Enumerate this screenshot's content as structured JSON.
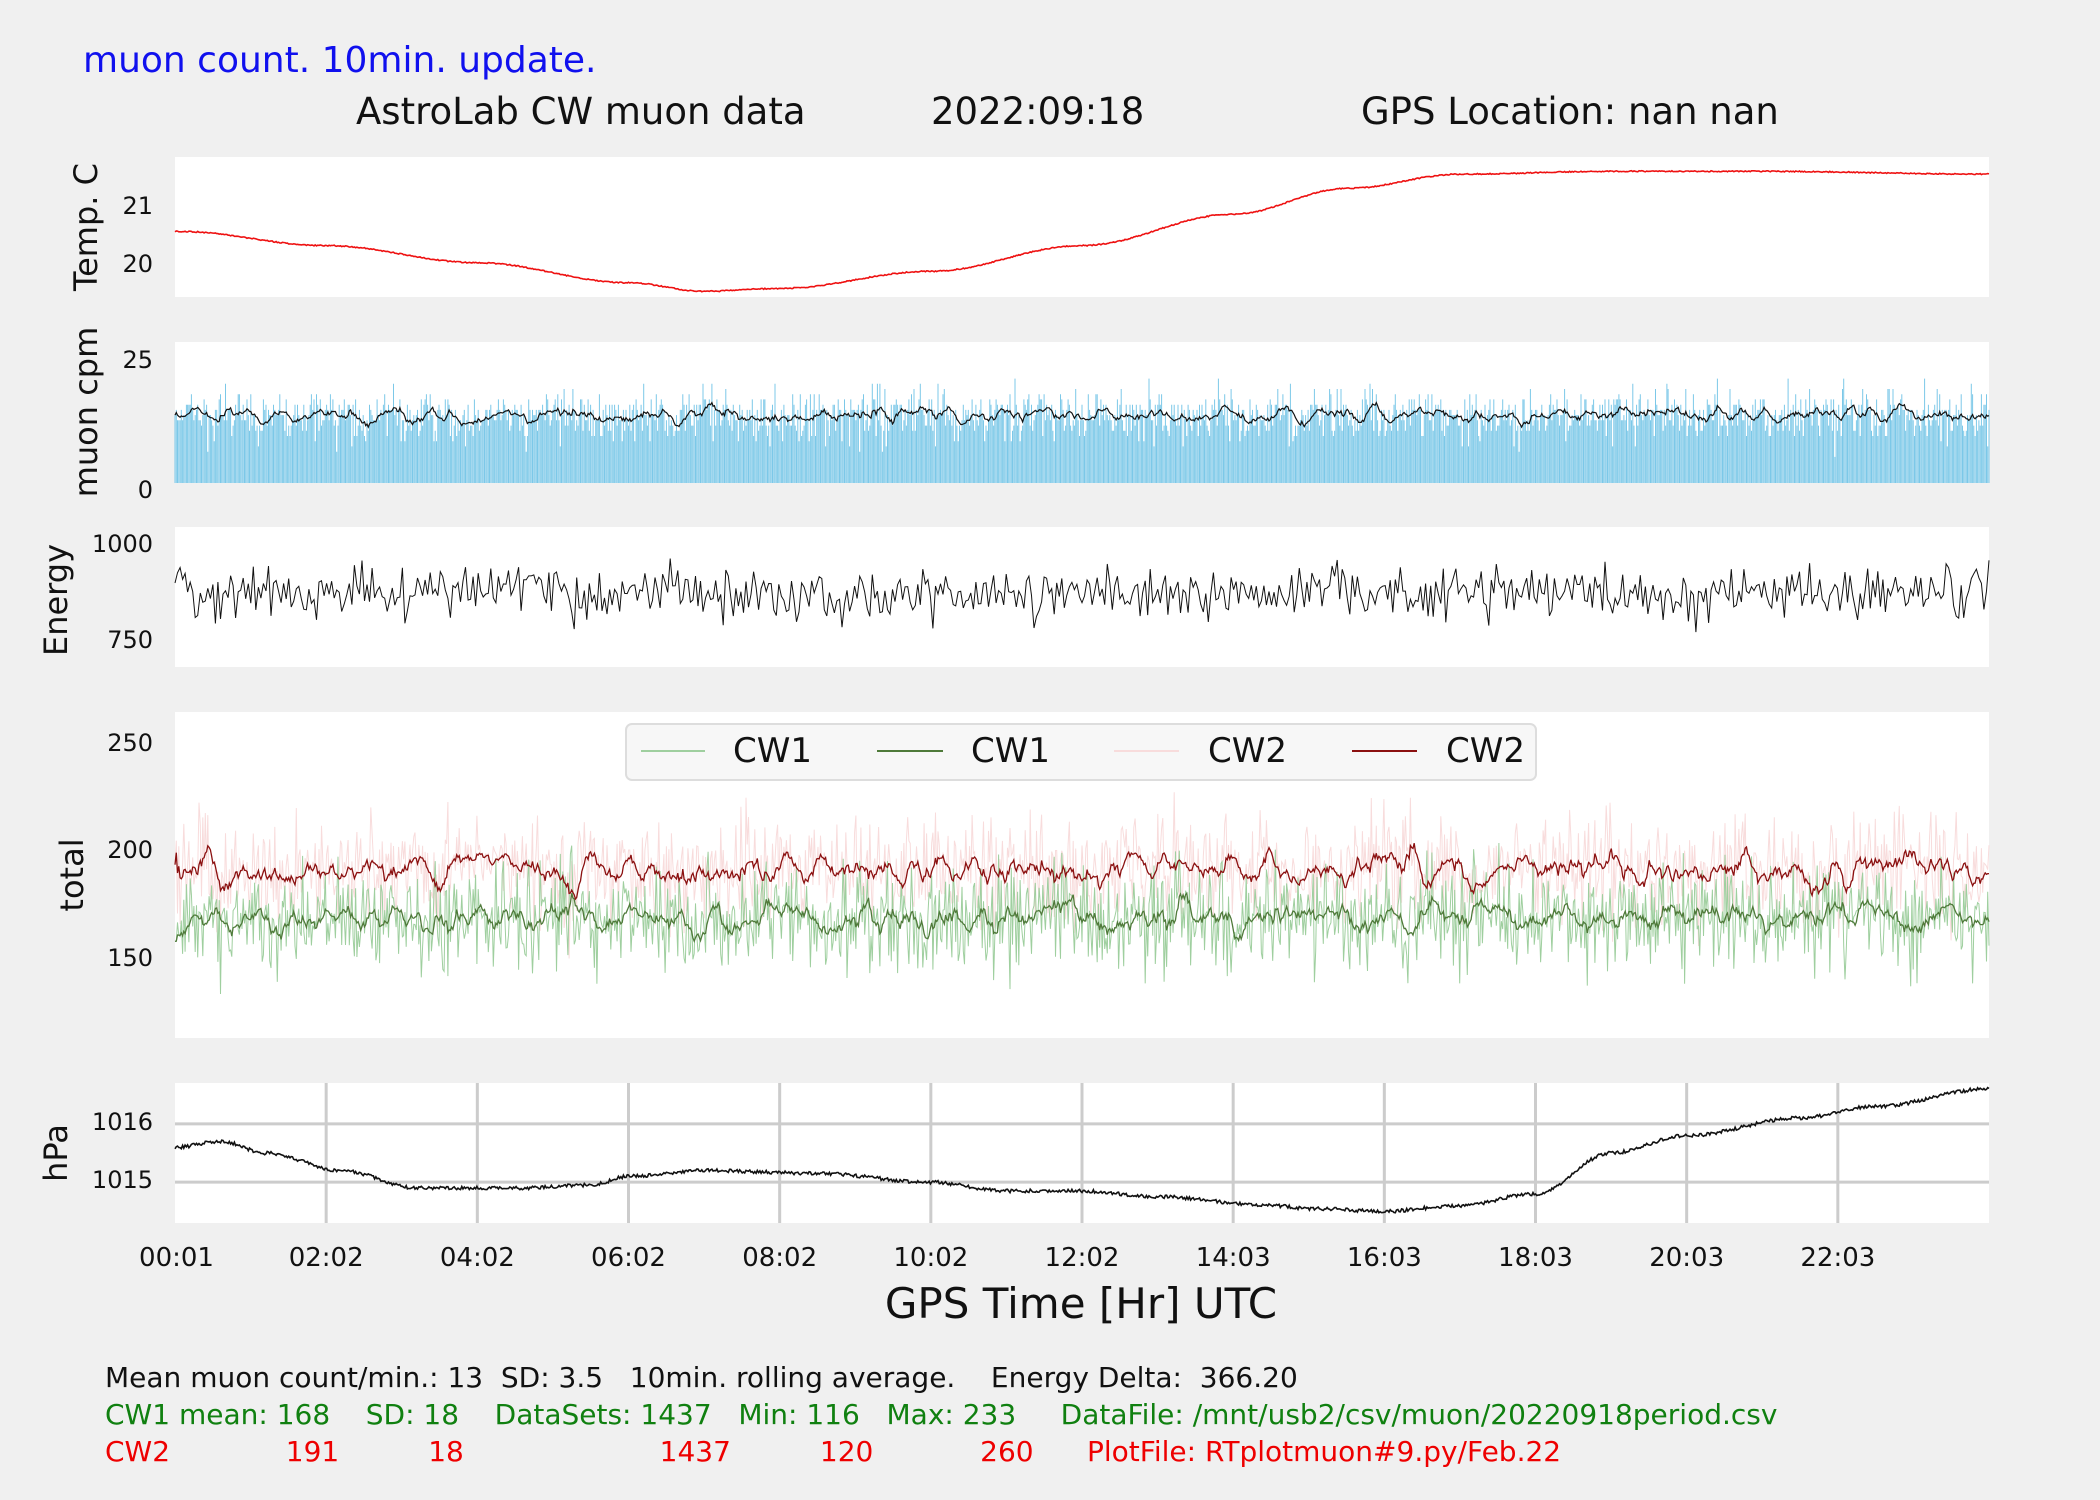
{
  "header": {
    "note": "muon count.  10min. update.",
    "title": "AstroLab CW muon data",
    "date": "2022:09:18",
    "gps": "GPS Location: nan   nan"
  },
  "chart_data": [
    {
      "type": "line",
      "panel": "temperature",
      "ylabel": "Temp. C",
      "yticks": [
        "20",
        "21"
      ],
      "ylim": [
        19.4,
        21.85
      ],
      "color": "#ee1111",
      "x_hours": [
        0.02,
        2,
        4,
        6,
        7,
        8,
        10,
        12,
        14,
        15.5,
        17,
        19,
        21,
        24
      ],
      "values": [
        20.55,
        20.3,
        20.0,
        19.65,
        19.5,
        19.55,
        19.85,
        20.3,
        20.85,
        21.3,
        21.55,
        21.6,
        21.6,
        21.55
      ]
    },
    {
      "type": "bar",
      "panel": "muon_cpm",
      "ylabel": "muon cpm",
      "yticks": [
        "0",
        "25"
      ],
      "ylim": [
        0,
        27
      ],
      "bar_color": "#7cc8e8",
      "line_color": "#111111",
      "mean": 13,
      "sd": 3.5,
      "rolling_window": "10min."
    },
    {
      "type": "line",
      "panel": "energy",
      "ylabel": "Energy",
      "yticks": [
        "750",
        "1000"
      ],
      "ylim": [
        680,
        1040
      ],
      "color": "#111111",
      "mean": 870,
      "energy_delta": 366.2
    },
    {
      "type": "line",
      "panel": "total",
      "ylabel": "total",
      "yticks": [
        "150",
        "200",
        "250"
      ],
      "ylim": [
        112,
        265
      ],
      "legend": [
        "CW1",
        "CW1",
        "CW2",
        "CW2"
      ],
      "legend_colors": [
        "#9fcf9f",
        "#4f7a3a",
        "#f8dcdc",
        "#8b1010"
      ],
      "series": [
        {
          "name": "CW1",
          "mean": 168,
          "sd": 18,
          "min": 116,
          "max": 233,
          "datasets": 1437
        },
        {
          "name": "CW2",
          "mean": 191,
          "sd": 18,
          "min": 120,
          "max": 260,
          "datasets": 1437
        }
      ]
    },
    {
      "type": "line",
      "panel": "pressure",
      "ylabel": "hPa",
      "yticks": [
        "1015",
        "1016"
      ],
      "ylim": [
        1014.3,
        1016.7
      ],
      "color": "#111111",
      "x_hours": [
        0.02,
        0.6,
        1.2,
        2.2,
        3.2,
        4.5,
        5.5,
        6,
        7,
        8.5,
        10,
        11,
        12,
        13,
        14.5,
        15,
        16,
        17,
        18,
        19,
        20,
        21.5,
        22.5,
        24
      ],
      "values": [
        1015.6,
        1015.7,
        1015.5,
        1015.2,
        1014.9,
        1014.9,
        1014.95,
        1015.1,
        1015.2,
        1015.15,
        1015.0,
        1014.85,
        1014.85,
        1014.75,
        1014.6,
        1014.55,
        1014.5,
        1014.6,
        1014.8,
        1015.5,
        1015.8,
        1016.1,
        1016.3,
        1016.6
      ],
      "grid": true
    }
  ],
  "xaxis": {
    "label": "GPS Time  [Hr] UTC",
    "ticks": [
      "00:01",
      "02:02",
      "04:02",
      "06:02",
      "08:02",
      "10:02",
      "12:02",
      "14:03",
      "16:03",
      "18:03",
      "20:03",
      "22:03"
    ],
    "range_hours": [
      0,
      24
    ]
  },
  "footer": {
    "line1": "Mean muon count/min.: 13  SD: 3.5   10min. rolling average.    Energy Delta:  366.20",
    "line2": "CW1 mean: 168    SD: 18    DataSets: 1437   Min: 116   Max: 233     DataFile: /mnt/usb2/csv/muon/20220918period.csv",
    "line3": "CW2             191          18                      1437          120            260      PlotFile: RTplotmuon#9.py/Feb.22"
  }
}
